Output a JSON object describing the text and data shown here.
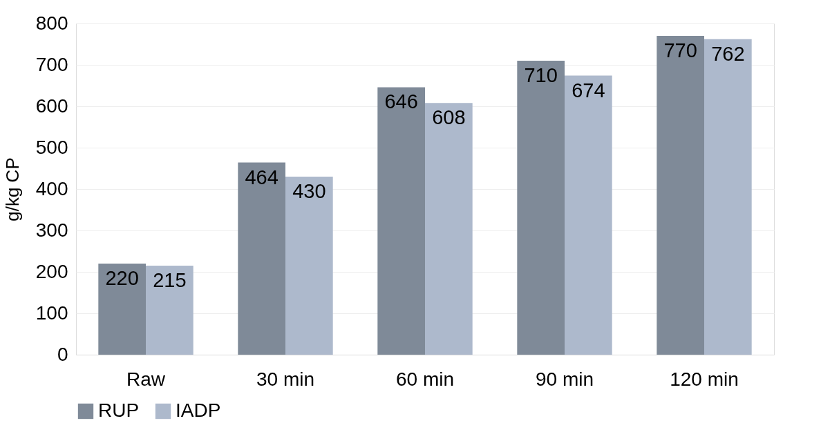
{
  "chart_data": {
    "type": "bar",
    "ylabel": "g/kg CP",
    "categories": [
      "Raw",
      "30 min",
      "60 min",
      "90 min",
      "120 min"
    ],
    "series": [
      {
        "name": "RUP",
        "color": "#7f8a98",
        "values": [
          220,
          464,
          646,
          710,
          770
        ]
      },
      {
        "name": "IADP",
        "color": "#adb9cc",
        "values": [
          215,
          430,
          608,
          674,
          762
        ]
      }
    ],
    "ylim": [
      0,
      800
    ],
    "yticks": [
      0,
      100,
      200,
      300,
      400,
      500,
      600,
      700,
      800
    ],
    "grid": "y",
    "legend": "bottom",
    "data_labels": true
  }
}
